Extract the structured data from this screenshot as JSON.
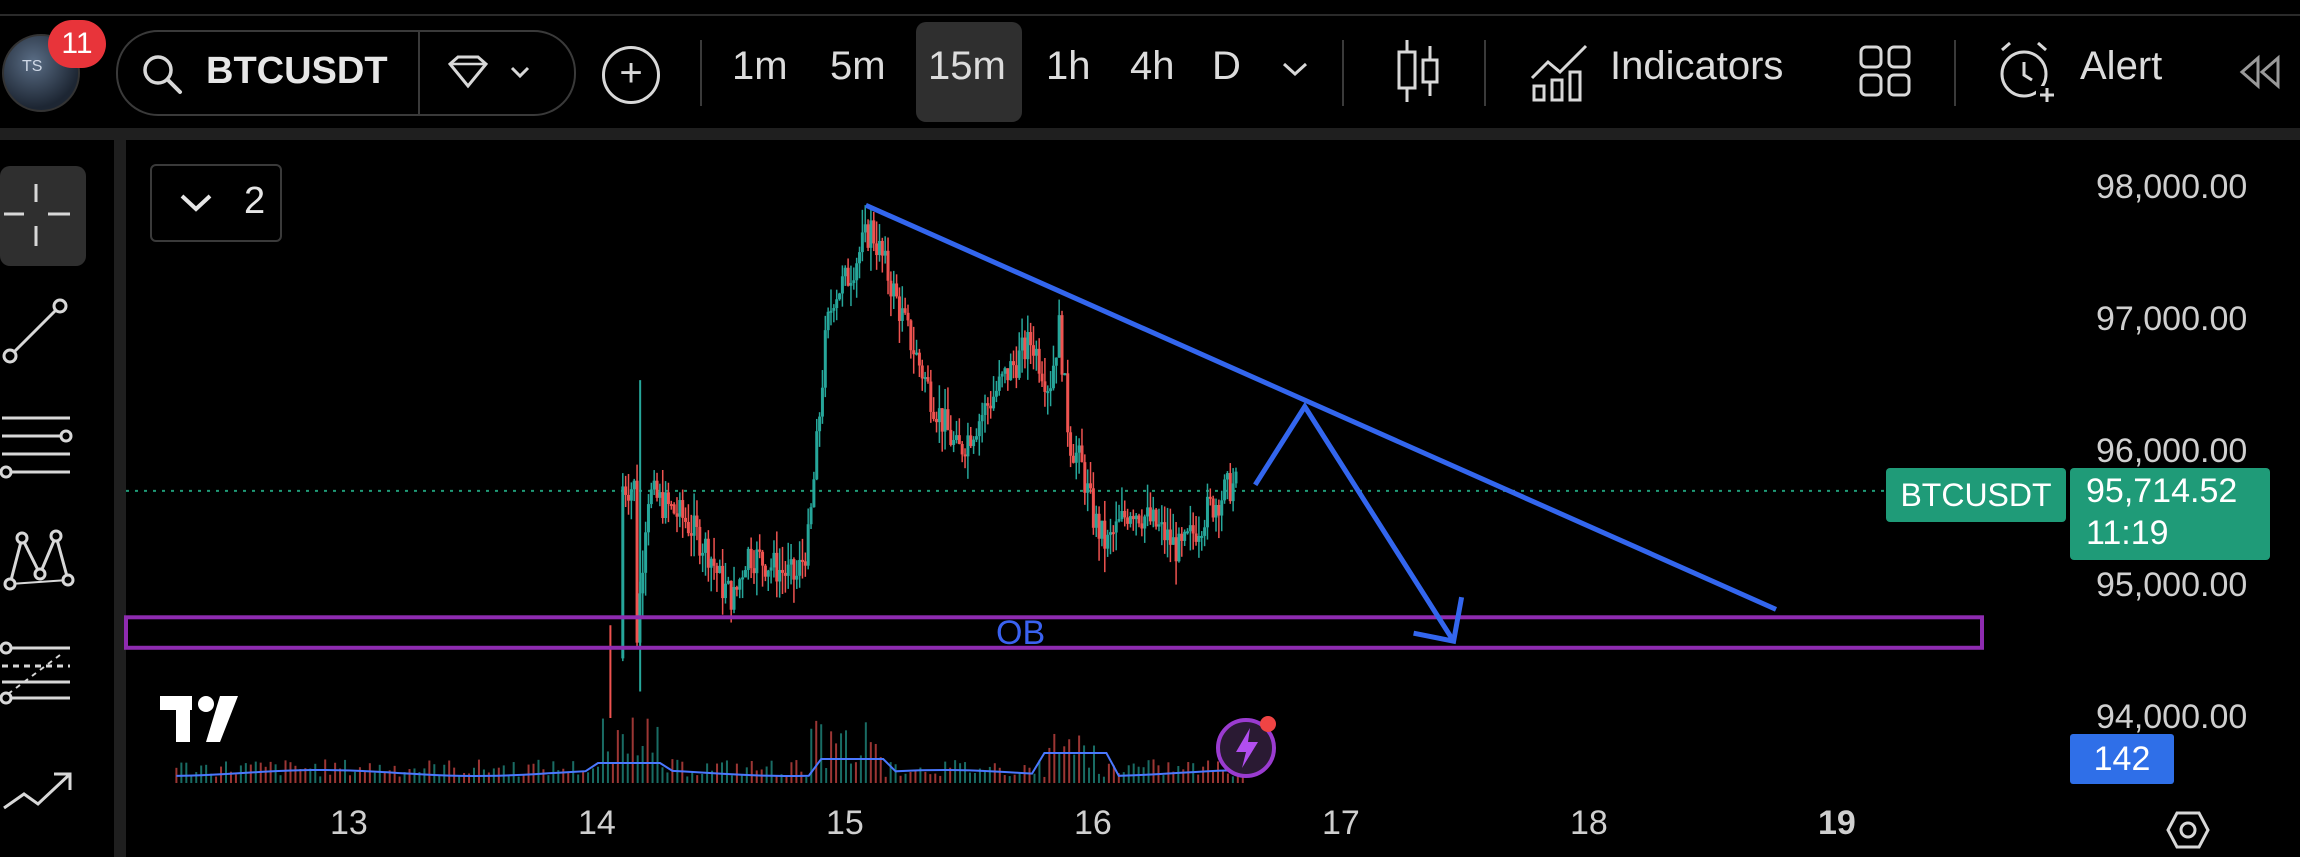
{
  "header": {
    "notification_count": "11",
    "symbol": "BTCUSDT",
    "timeframes": [
      "1m",
      "5m",
      "15m",
      "1h",
      "4h",
      "D"
    ],
    "active_timeframe": "15m",
    "indicators_label": "Indicators",
    "alert_label": "Alert"
  },
  "chart": {
    "layout_count": "2",
    "price_axis": [
      "98,000.00",
      "97,000.00",
      "96,000.00",
      "95,000.00",
      "94,000.00"
    ],
    "date_axis": [
      "13",
      "14",
      "15",
      "16",
      "17",
      "18",
      "19"
    ],
    "symbol_tag": "BTCUSDT",
    "current_price": "95,714.52",
    "countdown": "11:19",
    "volume_value": "142",
    "zone_label": "OB"
  },
  "colors": {
    "up": "#26a69a",
    "down": "#ef5350",
    "trendline": "#3366ee",
    "zone": "#8e2bb0",
    "price_tag": "#1f9b78",
    "volume_tag": "#2f6fe8",
    "notification": "#e8343a"
  },
  "chart_data": {
    "type": "candlestick",
    "price_range": [
      93700,
      98150
    ],
    "x_range": [
      12.2,
      19.4
    ],
    "current_price": 95714.52,
    "ob_zone": [
      94530,
      94760
    ],
    "trendline_start": [
      15.08,
      97870
    ],
    "trendline_end": [
      18.75,
      94820
    ],
    "projection": [
      [
        16.65,
        95760
      ],
      [
        16.85,
        96350
      ],
      [
        17.45,
        94580
      ]
    ]
  }
}
